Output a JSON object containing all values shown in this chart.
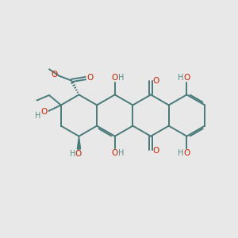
{
  "bg_color": "#e8e8e8",
  "bond_color": "#4a7a7a",
  "o_color": "#cc2200",
  "h_color": "#5a8888",
  "lw": 1.4,
  "figsize": [
    3.0,
    3.0
  ],
  "dpi": 100,
  "xlim": [
    0,
    10
  ],
  "ylim": [
    0,
    10
  ]
}
